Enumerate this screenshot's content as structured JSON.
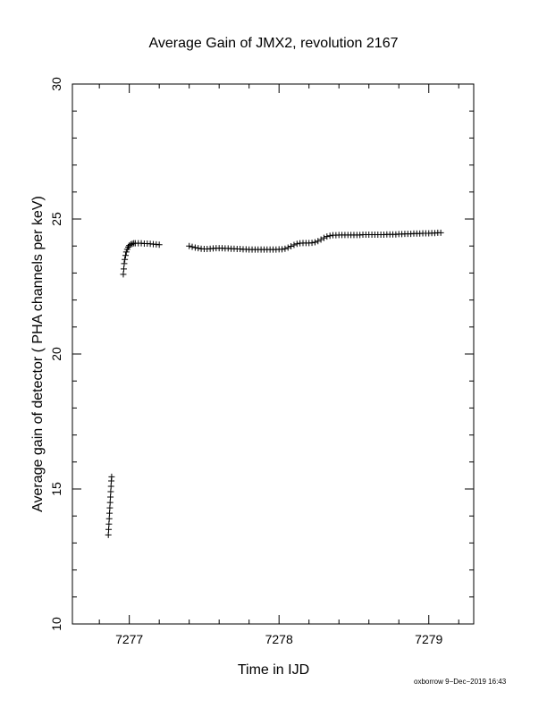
{
  "chart_data": {
    "type": "scatter",
    "title": "Average Gain of JMX2, revolution 2167",
    "xlabel": "Time in IJD",
    "ylabel": "Average gain of detector ( PHA channels per keV)",
    "xlim": [
      7276.62,
      7279.3
    ],
    "ylim": [
      10,
      30
    ],
    "xticks": [
      7277,
      7278,
      7279
    ],
    "yticks": [
      10,
      15,
      20,
      25,
      30
    ],
    "marker": "plus",
    "color": "#000000",
    "series": [
      {
        "points": [
          [
            7276.86,
            13.3
          ],
          [
            7276.862,
            13.5
          ],
          [
            7276.864,
            13.7
          ],
          [
            7276.866,
            13.9
          ],
          [
            7276.868,
            14.1
          ],
          [
            7276.87,
            14.3
          ],
          [
            7276.872,
            14.5
          ],
          [
            7276.874,
            14.7
          ],
          [
            7276.876,
            14.9
          ],
          [
            7276.878,
            15.1
          ],
          [
            7276.88,
            15.3
          ],
          [
            7276.882,
            15.45
          ],
          [
            7276.96,
            22.95
          ],
          [
            7276.963,
            23.15
          ],
          [
            7276.966,
            23.35
          ],
          [
            7276.97,
            23.5
          ],
          [
            7276.975,
            23.65
          ],
          [
            7276.98,
            23.78
          ],
          [
            7276.986,
            23.88
          ],
          [
            7276.993,
            23.96
          ],
          [
            7277.0,
            24.02
          ],
          [
            7277.01,
            24.06
          ],
          [
            7277.02,
            24.08
          ],
          [
            7277.03,
            24.1
          ],
          [
            7277.04,
            24.1
          ],
          [
            7277.06,
            24.1
          ],
          [
            7277.08,
            24.1
          ],
          [
            7277.1,
            24.09
          ],
          [
            7277.12,
            24.09
          ],
          [
            7277.14,
            24.08
          ],
          [
            7277.16,
            24.07
          ],
          [
            7277.18,
            24.06
          ],
          [
            7277.2,
            24.05
          ],
          [
            7277.4,
            24.0
          ],
          [
            7277.42,
            23.97
          ],
          [
            7277.44,
            23.94
          ],
          [
            7277.46,
            23.92
          ],
          [
            7277.48,
            23.9
          ],
          [
            7277.5,
            23.89
          ],
          [
            7277.52,
            23.89
          ],
          [
            7277.54,
            23.9
          ],
          [
            7277.56,
            23.91
          ],
          [
            7277.58,
            23.92
          ],
          [
            7277.6,
            23.92
          ],
          [
            7277.62,
            23.92
          ],
          [
            7277.64,
            23.91
          ],
          [
            7277.66,
            23.91
          ],
          [
            7277.68,
            23.9
          ],
          [
            7277.7,
            23.9
          ],
          [
            7277.72,
            23.89
          ],
          [
            7277.74,
            23.89
          ],
          [
            7277.76,
            23.88
          ],
          [
            7277.78,
            23.88
          ],
          [
            7277.8,
            23.87
          ],
          [
            7277.82,
            23.87
          ],
          [
            7277.84,
            23.87
          ],
          [
            7277.86,
            23.87
          ],
          [
            7277.88,
            23.87
          ],
          [
            7277.9,
            23.87
          ],
          [
            7277.92,
            23.87
          ],
          [
            7277.94,
            23.87
          ],
          [
            7277.96,
            23.87
          ],
          [
            7277.98,
            23.87
          ],
          [
            7278.0,
            23.88
          ],
          [
            7278.02,
            23.88
          ],
          [
            7278.04,
            23.9
          ],
          [
            7278.06,
            23.94
          ],
          [
            7278.08,
            23.99
          ],
          [
            7278.1,
            24.04
          ],
          [
            7278.12,
            24.08
          ],
          [
            7278.14,
            24.1
          ],
          [
            7278.16,
            24.11
          ],
          [
            7278.18,
            24.11
          ],
          [
            7278.2,
            24.11
          ],
          [
            7278.22,
            24.12
          ],
          [
            7278.24,
            24.14
          ],
          [
            7278.26,
            24.18
          ],
          [
            7278.28,
            24.24
          ],
          [
            7278.3,
            24.3
          ],
          [
            7278.32,
            24.35
          ],
          [
            7278.34,
            24.38
          ],
          [
            7278.36,
            24.4
          ],
          [
            7278.38,
            24.4
          ],
          [
            7278.4,
            24.41
          ],
          [
            7278.42,
            24.41
          ],
          [
            7278.44,
            24.41
          ],
          [
            7278.46,
            24.41
          ],
          [
            7278.48,
            24.41
          ],
          [
            7278.5,
            24.41
          ],
          [
            7278.52,
            24.41
          ],
          [
            7278.54,
            24.41
          ],
          [
            7278.56,
            24.42
          ],
          [
            7278.58,
            24.42
          ],
          [
            7278.6,
            24.42
          ],
          [
            7278.62,
            24.42
          ],
          [
            7278.64,
            24.42
          ],
          [
            7278.66,
            24.42
          ],
          [
            7278.68,
            24.42
          ],
          [
            7278.7,
            24.42
          ],
          [
            7278.72,
            24.43
          ],
          [
            7278.74,
            24.43
          ],
          [
            7278.76,
            24.43
          ],
          [
            7278.78,
            24.43
          ],
          [
            7278.8,
            24.44
          ],
          [
            7278.82,
            24.44
          ],
          [
            7278.84,
            24.45
          ],
          [
            7278.86,
            24.45
          ],
          [
            7278.88,
            24.45
          ],
          [
            7278.9,
            24.46
          ],
          [
            7278.92,
            24.46
          ],
          [
            7278.94,
            24.46
          ],
          [
            7278.96,
            24.47
          ],
          [
            7278.98,
            24.47
          ],
          [
            7279.0,
            24.47
          ],
          [
            7279.02,
            24.48
          ],
          [
            7279.04,
            24.48
          ],
          [
            7279.06,
            24.49
          ],
          [
            7279.08,
            24.49
          ]
        ]
      }
    ]
  },
  "footer": "oxborrow 9−Dec−2019 16:43"
}
